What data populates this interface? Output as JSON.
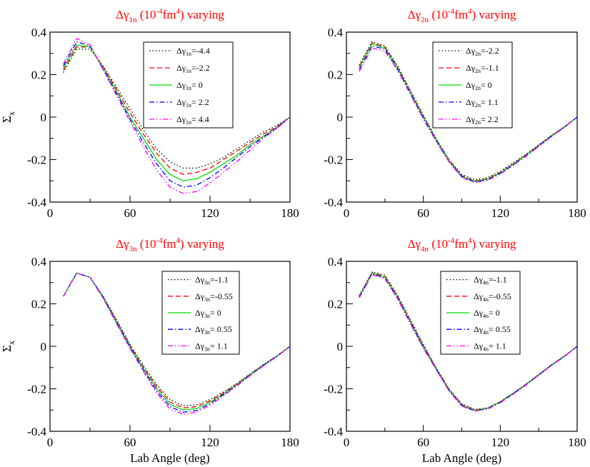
{
  "chart_data": [
    {
      "type": "line",
      "title_parts": [
        "Δγ",
        "1n",
        " (10",
        "-4",
        "fm",
        "4",
        ") varying"
      ],
      "xlabel": "",
      "ylabel": "Σx",
      "xlim": [
        0,
        180
      ],
      "ylim": [
        -0.4,
        0.4
      ],
      "xticks": [
        "0",
        "60",
        "120",
        "180"
      ],
      "yticks": [
        "-0.4",
        "-0.2",
        "0",
        "0.2",
        "0.4"
      ],
      "legend": "top-right",
      "x": [
        10,
        20,
        30,
        40,
        50,
        60,
        70,
        80,
        90,
        100,
        110,
        120,
        130,
        140,
        150,
        160,
        170,
        180
      ],
      "series": [
        {
          "sym": "Δγ",
          "sub": "1n",
          "val": "=-4.4",
          "color": "#000000",
          "dash": "1.5,3",
          "values": [
            0.21,
            0.32,
            0.32,
            0.24,
            0.14,
            0.04,
            -0.06,
            -0.15,
            -0.21,
            -0.24,
            -0.24,
            -0.22,
            -0.19,
            -0.15,
            -0.11,
            -0.07,
            -0.04,
            0.0
          ]
        },
        {
          "sym": "Δγ",
          "sub": "1n",
          "val": "=-2.2",
          "color": "#ff0000",
          "dash": "7,4",
          "values": [
            0.22,
            0.33,
            0.33,
            0.235,
            0.13,
            0.02,
            -0.08,
            -0.17,
            -0.24,
            -0.27,
            -0.26,
            -0.24,
            -0.2,
            -0.16,
            -0.12,
            -0.08,
            -0.045,
            0.0
          ]
        },
        {
          "sym": "Δγ",
          "sub": "1n",
          "val": "= 0",
          "color": "#00dd00",
          "dash": "",
          "values": [
            0.23,
            0.34,
            0.33,
            0.23,
            0.12,
            0.0,
            -0.1,
            -0.2,
            -0.27,
            -0.3,
            -0.29,
            -0.26,
            -0.22,
            -0.18,
            -0.13,
            -0.09,
            -0.05,
            0.0
          ]
        },
        {
          "sym": "Δγ",
          "sub": "1n",
          "val": "= 2.2",
          "color": "#0000ff",
          "dash": "7,3,1.5,3",
          "values": [
            0.24,
            0.355,
            0.335,
            0.225,
            0.11,
            -0.01,
            -0.12,
            -0.22,
            -0.3,
            -0.33,
            -0.32,
            -0.285,
            -0.24,
            -0.19,
            -0.14,
            -0.095,
            -0.05,
            0.0
          ]
        },
        {
          "sym": "Δγ",
          "sub": "1n",
          "val": "= 4.4",
          "color": "#ff00ff",
          "dash": "7,3,1.5,3,1.5,3",
          "values": [
            0.25,
            0.37,
            0.34,
            0.22,
            0.1,
            -0.02,
            -0.14,
            -0.25,
            -0.33,
            -0.36,
            -0.35,
            -0.31,
            -0.26,
            -0.21,
            -0.155,
            -0.1,
            -0.055,
            0.0
          ]
        }
      ]
    },
    {
      "type": "line",
      "title_parts": [
        "Δγ",
        "2n",
        " (10",
        "-4",
        "fm",
        "4",
        ") varying"
      ],
      "xlabel": "",
      "ylabel": "",
      "xlim": [
        0,
        180
      ],
      "ylim": [
        -0.4,
        0.4
      ],
      "xticks": [
        "0",
        "60",
        "120",
        "180"
      ],
      "yticks": [
        "-0.4",
        "-0.2",
        "0",
        "0.2",
        "0.4"
      ],
      "legend": "top-right",
      "x": [
        10,
        20,
        30,
        40,
        50,
        60,
        70,
        80,
        90,
        100,
        110,
        120,
        130,
        140,
        150,
        160,
        170,
        180
      ],
      "series": [
        {
          "sym": "Δγ",
          "sub": "2n",
          "val": "=-2.2",
          "color": "#000000",
          "dash": "1.5,3",
          "values": [
            0.245,
            0.355,
            0.335,
            0.24,
            0.125,
            0.01,
            -0.1,
            -0.2,
            -0.27,
            -0.295,
            -0.285,
            -0.255,
            -0.215,
            -0.175,
            -0.13,
            -0.085,
            -0.045,
            0.0
          ]
        },
        {
          "sym": "Δγ",
          "sub": "2n",
          "val": "=-1.1",
          "color": "#ff0000",
          "dash": "7,4",
          "values": [
            0.24,
            0.35,
            0.33,
            0.235,
            0.12,
            0.005,
            -0.105,
            -0.2,
            -0.275,
            -0.3,
            -0.29,
            -0.26,
            -0.22,
            -0.178,
            -0.132,
            -0.087,
            -0.046,
            0.0
          ]
        },
        {
          "sym": "Δγ",
          "sub": "2n",
          "val": "= 0",
          "color": "#00dd00",
          "dash": "",
          "values": [
            0.235,
            0.345,
            0.325,
            0.23,
            0.115,
            0.0,
            -0.105,
            -0.205,
            -0.278,
            -0.302,
            -0.292,
            -0.262,
            -0.222,
            -0.18,
            -0.134,
            -0.088,
            -0.047,
            0.0
          ]
        },
        {
          "sym": "Δγ",
          "sub": "2n",
          "val": "= 1.1",
          "color": "#0000ff",
          "dash": "7,3,1.5,3",
          "values": [
            0.225,
            0.335,
            0.32,
            0.225,
            0.11,
            -0.005,
            -0.11,
            -0.21,
            -0.28,
            -0.305,
            -0.295,
            -0.265,
            -0.225,
            -0.182,
            -0.136,
            -0.09,
            -0.048,
            0.0
          ]
        },
        {
          "sym": "Δγ",
          "sub": "2n",
          "val": "= 2.2",
          "color": "#ff00ff",
          "dash": "7,3,1.5,3,1.5,3",
          "values": [
            0.215,
            0.325,
            0.31,
            0.22,
            0.105,
            -0.01,
            -0.115,
            -0.21,
            -0.285,
            -0.308,
            -0.298,
            -0.268,
            -0.228,
            -0.185,
            -0.138,
            -0.092,
            -0.049,
            0.0
          ]
        }
      ]
    },
    {
      "type": "line",
      "title_parts": [
        "Δγ",
        "3n",
        " (10",
        "-4",
        "fm",
        "4",
        ") varying"
      ],
      "xlabel": "Lab Angle (deg)",
      "ylabel": "Σx",
      "xlim": [
        0,
        180
      ],
      "ylim": [
        -0.4,
        0.4
      ],
      "xticks": [
        "0",
        "60",
        "120",
        "180"
      ],
      "yticks": [
        "-0.4",
        "-0.2",
        "0",
        "0.2",
        "0.4"
      ],
      "legend": "top-right",
      "x": [
        10,
        20,
        30,
        40,
        50,
        60,
        70,
        80,
        90,
        100,
        110,
        120,
        130,
        140,
        150,
        160,
        170,
        180
      ],
      "series": [
        {
          "sym": "Δγ",
          "sub": "3n",
          "val": "=-1.1",
          "color": "#000000",
          "dash": "1.5,3",
          "values": [
            0.235,
            0.345,
            0.325,
            0.235,
            0.125,
            0.01,
            -0.09,
            -0.18,
            -0.25,
            -0.28,
            -0.275,
            -0.25,
            -0.215,
            -0.175,
            -0.13,
            -0.085,
            -0.045,
            0.0
          ]
        },
        {
          "sym": "Δγ",
          "sub": "3n",
          "val": "=-0.55",
          "color": "#ff0000",
          "dash": "7,4",
          "values": [
            0.235,
            0.345,
            0.325,
            0.232,
            0.12,
            0.005,
            -0.097,
            -0.19,
            -0.262,
            -0.29,
            -0.284,
            -0.257,
            -0.22,
            -0.178,
            -0.132,
            -0.087,
            -0.046,
            0.0
          ]
        },
        {
          "sym": "Δγ",
          "sub": "3n",
          "val": "= 0",
          "color": "#00dd00",
          "dash": "",
          "values": [
            0.235,
            0.345,
            0.325,
            0.23,
            0.115,
            0.0,
            -0.104,
            -0.2,
            -0.273,
            -0.3,
            -0.293,
            -0.263,
            -0.224,
            -0.181,
            -0.134,
            -0.088,
            -0.047,
            0.0
          ]
        },
        {
          "sym": "Δγ",
          "sub": "3n",
          "val": "= 0.55",
          "color": "#0000ff",
          "dash": "7,3,1.5,3",
          "values": [
            0.235,
            0.345,
            0.325,
            0.228,
            0.11,
            -0.005,
            -0.111,
            -0.21,
            -0.284,
            -0.31,
            -0.302,
            -0.27,
            -0.228,
            -0.184,
            -0.136,
            -0.09,
            -0.048,
            0.0
          ]
        },
        {
          "sym": "Δγ",
          "sub": "3n",
          "val": "= 1.1",
          "color": "#ff00ff",
          "dash": "7,3,1.5,3,1.5,3",
          "values": [
            0.235,
            0.345,
            0.325,
            0.225,
            0.105,
            -0.01,
            -0.118,
            -0.22,
            -0.295,
            -0.32,
            -0.31,
            -0.277,
            -0.233,
            -0.187,
            -0.138,
            -0.092,
            -0.049,
            0.0
          ]
        }
      ]
    },
    {
      "type": "line",
      "title_parts": [
        "Δγ",
        "4n",
        " (10",
        "-4",
        "fm",
        "4",
        ") varying"
      ],
      "xlabel": "Lab Angle (deg)",
      "ylabel": "",
      "xlim": [
        0,
        180
      ],
      "ylim": [
        -0.4,
        0.4
      ],
      "xticks": [
        "0",
        "60",
        "120",
        "180"
      ],
      "yticks": [
        "-0.4",
        "-0.2",
        "0",
        "0.2",
        "0.4"
      ],
      "legend": "top-right",
      "x": [
        10,
        20,
        30,
        40,
        50,
        60,
        70,
        80,
        90,
        100,
        110,
        120,
        130,
        140,
        150,
        160,
        170,
        180
      ],
      "series": [
        {
          "sym": "Δγ",
          "sub": "4n",
          "val": "=-1.1",
          "color": "#000000",
          "dash": "1.5,3",
          "values": [
            0.24,
            0.35,
            0.335,
            0.24,
            0.125,
            0.01,
            -0.1,
            -0.2,
            -0.27,
            -0.297,
            -0.29,
            -0.26,
            -0.22,
            -0.178,
            -0.132,
            -0.087,
            -0.046,
            0.0
          ]
        },
        {
          "sym": "Δγ",
          "sub": "4n",
          "val": "=-0.55",
          "color": "#ff0000",
          "dash": "7,4",
          "values": [
            0.237,
            0.347,
            0.33,
            0.235,
            0.12,
            0.005,
            -0.102,
            -0.202,
            -0.274,
            -0.299,
            -0.291,
            -0.261,
            -0.221,
            -0.179,
            -0.133,
            -0.087,
            -0.046,
            0.0
          ]
        },
        {
          "sym": "Δγ",
          "sub": "4n",
          "val": "= 0",
          "color": "#00dd00",
          "dash": "",
          "values": [
            0.235,
            0.345,
            0.325,
            0.23,
            0.115,
            0.0,
            -0.104,
            -0.205,
            -0.277,
            -0.301,
            -0.292,
            -0.262,
            -0.222,
            -0.18,
            -0.134,
            -0.088,
            -0.047,
            0.0
          ]
        },
        {
          "sym": "Δγ",
          "sub": "4n",
          "val": "= 0.55",
          "color": "#0000ff",
          "dash": "7,3,1.5,3",
          "values": [
            0.232,
            0.342,
            0.322,
            0.226,
            0.11,
            -0.005,
            -0.107,
            -0.207,
            -0.279,
            -0.303,
            -0.294,
            -0.264,
            -0.224,
            -0.181,
            -0.135,
            -0.089,
            -0.048,
            0.0
          ]
        },
        {
          "sym": "Δγ",
          "sub": "4n",
          "val": "= 1.1",
          "color": "#ff00ff",
          "dash": "7,3,1.5,3,1.5,3",
          "values": [
            0.228,
            0.338,
            0.318,
            0.222,
            0.105,
            -0.01,
            -0.11,
            -0.21,
            -0.282,
            -0.305,
            -0.296,
            -0.266,
            -0.226,
            -0.183,
            -0.136,
            -0.09,
            -0.049,
            0.0
          ]
        }
      ]
    }
  ]
}
